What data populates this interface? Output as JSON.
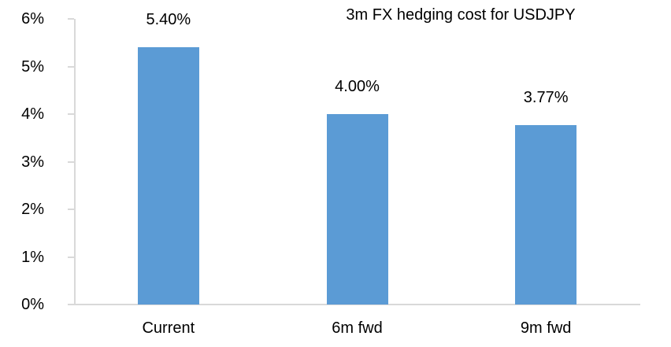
{
  "chart_data": {
    "type": "bar",
    "title": "3m FX hedging cost for USDJPY",
    "categories": [
      "Current",
      "6m fwd",
      "9m fwd"
    ],
    "values": [
      5.4,
      4.0,
      3.77
    ],
    "value_labels": [
      "5.40%",
      "4.00%",
      "3.77%"
    ],
    "y_ticks": [
      "0%",
      "1%",
      "2%",
      "3%",
      "4%",
      "5%",
      "6%"
    ],
    "ylim": [
      0,
      6
    ],
    "xlabel": "",
    "ylabel": "",
    "grid": false,
    "legend": false,
    "layout_hints": {
      "title_position": "top-center-over-plot",
      "value_labels_position": "outside-end-above-bars",
      "gridlines": "none"
    },
    "colors": {
      "bar": "#5B9BD5",
      "axis": "#D9D9D9",
      "text": "#000000",
      "background": "#FFFFFF"
    }
  }
}
